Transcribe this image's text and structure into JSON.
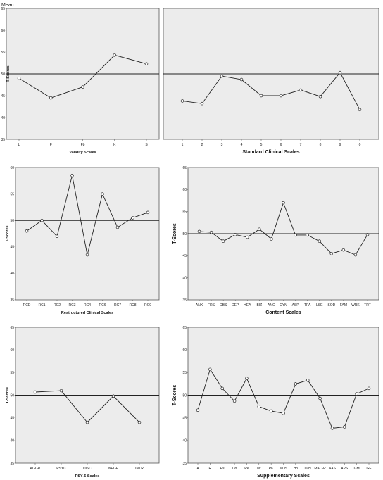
{
  "header": {
    "corner_label": "Mean"
  },
  "colors": {
    "plot_bg": "#ececec",
    "frame": "#555555",
    "line": "#222222",
    "marker_fill": "#ffffff"
  },
  "chart_data": [
    {
      "id": "validity",
      "type": "line",
      "xlabel": "Validity Scales",
      "ylabel": "T-Scores",
      "categories": [
        "L",
        "F",
        "Fb",
        "K",
        "S"
      ],
      "values": [
        49,
        44.5,
        47,
        54.3,
        52.3
      ],
      "reference_line": 50,
      "ylim": [
        35,
        65
      ],
      "yticks": [
        "35",
        "40",
        "45",
        "50",
        "55",
        "60",
        "65"
      ],
      "grid": false
    },
    {
      "id": "standard-clinical",
      "type": "line",
      "xlabel": "Standard Clinical Scales",
      "ylabel": "",
      "categories": [
        "1",
        "2",
        "3",
        "4",
        "5",
        "6",
        "7",
        "8",
        "9",
        "0"
      ],
      "values": [
        43.8,
        43.2,
        49.5,
        48.7,
        45,
        45,
        46.3,
        44.8,
        50.3,
        41.8
      ],
      "reference_line": 50,
      "ylim": [
        35,
        65
      ],
      "yticks": [],
      "grid": false
    },
    {
      "id": "restructured-clinical",
      "type": "line",
      "xlabel": "Restructured Clinical Scales",
      "ylabel": "T-Scores",
      "categories": [
        "RCD",
        "RC1",
        "RC2",
        "RC3",
        "RC4",
        "RC6",
        "RC7",
        "RC8",
        "RC9"
      ],
      "values": [
        48,
        50,
        47,
        58.5,
        43.5,
        55,
        48.7,
        50.5,
        51.5
      ],
      "reference_line": 50,
      "ylim": [
        35,
        60
      ],
      "yticks": [
        "35",
        "40",
        "45",
        "50",
        "55",
        "60"
      ],
      "grid": false
    },
    {
      "id": "content",
      "type": "line",
      "xlabel": "Content Scales",
      "ylabel": "T-Scores",
      "categories": [
        "ANX",
        "FRS",
        "OBS",
        "DEP",
        "HEA",
        "BIZ",
        "ANG",
        "CYN",
        "ASP",
        "TPA",
        "LSE",
        "SOD",
        "FAM",
        "WRK",
        "TRT"
      ],
      "values": [
        50.5,
        50.3,
        48.3,
        49.8,
        49.2,
        51,
        48.8,
        57,
        49.7,
        49.7,
        48.3,
        45.5,
        46.3,
        45.2,
        49.8
      ],
      "reference_line": 50,
      "ylim": [
        35,
        65
      ],
      "yticks": [
        "35",
        "40",
        "45",
        "50",
        "55",
        "60",
        "65"
      ],
      "grid": false
    },
    {
      "id": "psy5",
      "type": "line",
      "xlabel": "PSY-5 Scales",
      "ylabel": "T-Scores",
      "categories": [
        "AGGR",
        "PSYC",
        "DISC",
        "NEGE",
        "INTR"
      ],
      "values": [
        50.7,
        51,
        44,
        49.8,
        44
      ],
      "reference_line": 50,
      "ylim": [
        35,
        65
      ],
      "yticks": [
        "35",
        "40",
        "45",
        "50",
        "55",
        "60",
        "65"
      ],
      "grid": false
    },
    {
      "id": "supplementary",
      "type": "line",
      "xlabel": "Supplementary Scales",
      "ylabel": "T-Scores",
      "categories": [
        "A",
        "R",
        "Es",
        "Do",
        "Re",
        "Mt",
        "PK",
        "MDS",
        "Ho",
        "O-H",
        "MAC-R",
        "AAS",
        "APS",
        "GM",
        "GF"
      ],
      "values": [
        46.7,
        55.7,
        51.5,
        48.7,
        53.7,
        47.5,
        46.5,
        46,
        52.5,
        53.3,
        49.3,
        42.7,
        43,
        50.3,
        51.5
      ],
      "reference_line": 50,
      "ylim": [
        35,
        65
      ],
      "yticks": [
        "35",
        "40",
        "45",
        "50",
        "55",
        "60",
        "65"
      ],
      "grid": false
    }
  ]
}
